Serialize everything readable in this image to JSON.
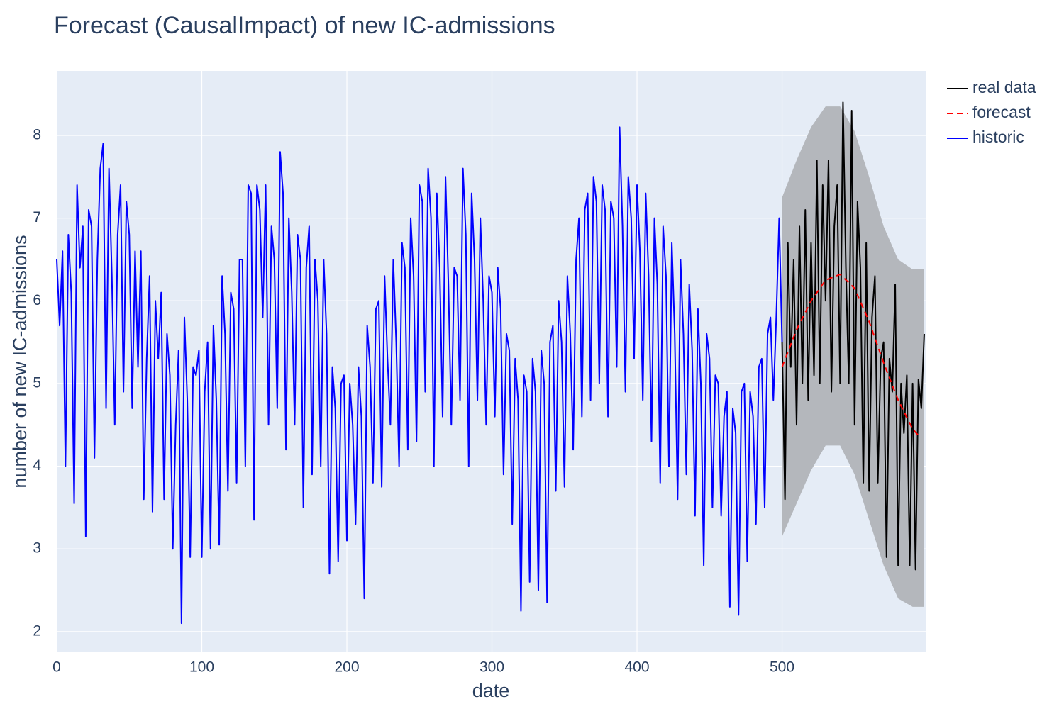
{
  "chart_data": {
    "type": "line",
    "title": "Forecast (CausalImpact) of new IC-admissions",
    "x_label": "date",
    "y_label": "number of new IC-admissions",
    "xlim": [
      0,
      599
    ],
    "ylim": [
      1.75,
      8.78
    ],
    "xticks": [
      0,
      100,
      200,
      300,
      400,
      500
    ],
    "yticks": [
      2,
      3,
      4,
      5,
      6,
      7,
      8
    ],
    "grid": true,
    "legend": "top-right",
    "band": {
      "color": "#b4b7bc",
      "x": [
        500,
        510,
        520,
        530,
        540,
        550,
        560,
        570,
        580,
        590,
        598
      ],
      "upper": [
        7.25,
        7.7,
        8.1,
        8.35,
        8.35,
        8.05,
        7.5,
        6.9,
        6.5,
        6.38,
        6.38
      ],
      "lower": [
        3.15,
        3.55,
        3.95,
        4.25,
        4.25,
        3.9,
        3.35,
        2.8,
        2.4,
        2.3,
        2.3
      ]
    },
    "series": [
      {
        "name": "real data",
        "color": "#000000",
        "dash": false,
        "x": [
          500,
          502,
          504,
          506,
          508,
          510,
          512,
          514,
          516,
          518,
          520,
          522,
          524,
          526,
          528,
          530,
          532,
          534,
          536,
          538,
          540,
          542,
          544,
          546,
          548,
          550,
          552,
          554,
          556,
          558,
          560,
          562,
          564,
          566,
          568,
          570,
          572,
          574,
          576,
          578,
          580,
          582,
          584,
          586,
          588,
          590,
          592,
          594,
          596,
          598
        ],
        "values": [
          5.5,
          3.6,
          6.7,
          5.2,
          6.5,
          4.5,
          6.9,
          5.0,
          7.1,
          4.8,
          6.7,
          5.1,
          7.7,
          5.0,
          7.4,
          6.0,
          7.7,
          4.9,
          6.9,
          7.4,
          5.0,
          8.4,
          6.4,
          5.0,
          8.3,
          4.5,
          7.2,
          6.4,
          3.8,
          6.7,
          3.7,
          5.8,
          6.3,
          3.8,
          5.3,
          5.5,
          2.9,
          5.3,
          4.9,
          6.2,
          2.8,
          5.0,
          4.4,
          5.1,
          2.8,
          5.0,
          2.75,
          5.05,
          4.7,
          5.6
        ]
      },
      {
        "name": "forecast",
        "color": "#ff0000",
        "dash": true,
        "x": [
          500,
          510,
          520,
          530,
          540,
          550,
          560,
          570,
          580,
          590,
          595
        ],
        "values": [
          5.2,
          5.65,
          6.0,
          6.25,
          6.32,
          6.15,
          5.75,
          5.25,
          4.8,
          4.45,
          4.35
        ]
      },
      {
        "name": "historic",
        "color": "#0000ff",
        "dash": false,
        "x": [
          0,
          2,
          4,
          6,
          8,
          10,
          12,
          14,
          16,
          18,
          20,
          22,
          24,
          26,
          28,
          30,
          32,
          34,
          36,
          38,
          40,
          42,
          44,
          46,
          48,
          50,
          52,
          54,
          56,
          58,
          60,
          62,
          64,
          66,
          68,
          70,
          72,
          74,
          76,
          78,
          80,
          82,
          84,
          86,
          88,
          90,
          92,
          94,
          96,
          98,
          100,
          102,
          104,
          106,
          108,
          110,
          112,
          114,
          116,
          118,
          120,
          122,
          124,
          126,
          128,
          130,
          132,
          134,
          136,
          138,
          140,
          142,
          144,
          146,
          148,
          150,
          152,
          154,
          156,
          158,
          160,
          162,
          164,
          166,
          168,
          170,
          172,
          174,
          176,
          178,
          180,
          182,
          184,
          186,
          188,
          190,
          192,
          194,
          196,
          198,
          200,
          202,
          204,
          206,
          208,
          210,
          212,
          214,
          216,
          218,
          220,
          222,
          224,
          226,
          228,
          230,
          232,
          234,
          236,
          238,
          240,
          242,
          244,
          246,
          248,
          250,
          252,
          254,
          256,
          258,
          260,
          262,
          264,
          266,
          268,
          270,
          272,
          274,
          276,
          278,
          280,
          282,
          284,
          286,
          288,
          290,
          292,
          294,
          296,
          298,
          300,
          302,
          304,
          306,
          308,
          310,
          312,
          314,
          316,
          318,
          320,
          322,
          324,
          326,
          328,
          330,
          332,
          334,
          336,
          338,
          340,
          342,
          344,
          346,
          348,
          350,
          352,
          354,
          356,
          358,
          360,
          362,
          364,
          366,
          368,
          370,
          372,
          374,
          376,
          378,
          380,
          382,
          384,
          386,
          388,
          390,
          392,
          394,
          396,
          398,
          400,
          402,
          404,
          406,
          408,
          410,
          412,
          414,
          416,
          418,
          420,
          422,
          424,
          426,
          428,
          430,
          432,
          434,
          436,
          438,
          440,
          442,
          444,
          446,
          448,
          450,
          452,
          454,
          456,
          458,
          460,
          462,
          464,
          466,
          468,
          470,
          472,
          474,
          476,
          478,
          480,
          482,
          484,
          486,
          488,
          490,
          492,
          494,
          496,
          498,
          500
        ],
        "values": [
          6.5,
          5.7,
          6.6,
          4.0,
          6.8,
          6.1,
          3.55,
          7.4,
          6.4,
          6.9,
          3.15,
          7.1,
          6.9,
          4.1,
          6.5,
          7.6,
          7.9,
          4.7,
          7.6,
          6.3,
          4.5,
          6.8,
          7.4,
          4.9,
          7.2,
          6.8,
          4.7,
          6.6,
          5.2,
          6.6,
          3.6,
          5.3,
          6.3,
          3.45,
          6.0,
          5.3,
          6.1,
          3.6,
          5.6,
          5.1,
          3.0,
          4.5,
          5.4,
          2.1,
          5.8,
          4.8,
          2.9,
          5.2,
          5.1,
          5.4,
          2.9,
          4.9,
          5.5,
          3.0,
          5.7,
          4.8,
          3.05,
          6.3,
          5.6,
          3.7,
          6.1,
          5.9,
          3.8,
          6.5,
          6.5,
          4.0,
          7.4,
          7.3,
          3.35,
          7.4,
          7.1,
          5.8,
          7.4,
          4.5,
          6.9,
          6.5,
          4.7,
          7.8,
          7.3,
          4.2,
          7.0,
          6.1,
          4.5,
          6.8,
          6.5,
          3.5,
          6.4,
          6.9,
          3.9,
          6.5,
          6.0,
          4.0,
          6.5,
          5.6,
          2.7,
          5.2,
          4.7,
          2.85,
          5.0,
          5.1,
          3.1,
          5.0,
          4.5,
          3.3,
          5.2,
          4.6,
          2.4,
          5.7,
          5.2,
          3.8,
          5.9,
          6.0,
          3.75,
          6.3,
          5.3,
          4.5,
          6.5,
          5.5,
          4.0,
          6.7,
          6.4,
          4.2,
          7.0,
          6.3,
          4.3,
          7.4,
          7.2,
          4.9,
          7.6,
          7.0,
          4.0,
          7.3,
          6.4,
          4.6,
          7.5,
          6.2,
          4.5,
          6.4,
          6.3,
          4.8,
          7.6,
          6.8,
          4.0,
          7.3,
          6.5,
          4.8,
          7.0,
          6.0,
          4.5,
          6.3,
          6.1,
          4.6,
          6.4,
          5.9,
          3.9,
          5.6,
          5.4,
          3.3,
          5.3,
          4.8,
          2.25,
          5.1,
          4.9,
          2.6,
          5.3,
          4.9,
          2.5,
          5.4,
          5.0,
          2.35,
          5.5,
          5.7,
          3.7,
          6.0,
          5.5,
          3.75,
          6.3,
          5.6,
          4.2,
          6.5,
          7.0,
          4.6,
          7.1,
          7.3,
          4.8,
          7.5,
          7.2,
          5.0,
          7.4,
          7.1,
          4.6,
          7.2,
          7.0,
          5.2,
          8.1,
          6.9,
          4.9,
          7.5,
          7.0,
          5.3,
          7.4,
          6.6,
          4.8,
          7.3,
          6.3,
          4.3,
          7.0,
          6.2,
          3.8,
          6.9,
          6.3,
          4.0,
          6.7,
          5.6,
          3.6,
          6.5,
          5.6,
          3.9,
          6.2,
          5.4,
          3.4,
          5.9,
          5.0,
          2.8,
          5.6,
          5.3,
          3.5,
          5.1,
          5.0,
          3.4,
          4.6,
          4.9,
          2.3,
          4.7,
          4.4,
          2.2,
          4.9,
          5.0,
          2.85,
          4.9,
          4.6,
          3.3,
          5.2,
          5.3,
          3.5,
          5.6,
          5.8,
          4.8,
          5.8,
          7.0,
          5.5
        ]
      }
    ]
  }
}
